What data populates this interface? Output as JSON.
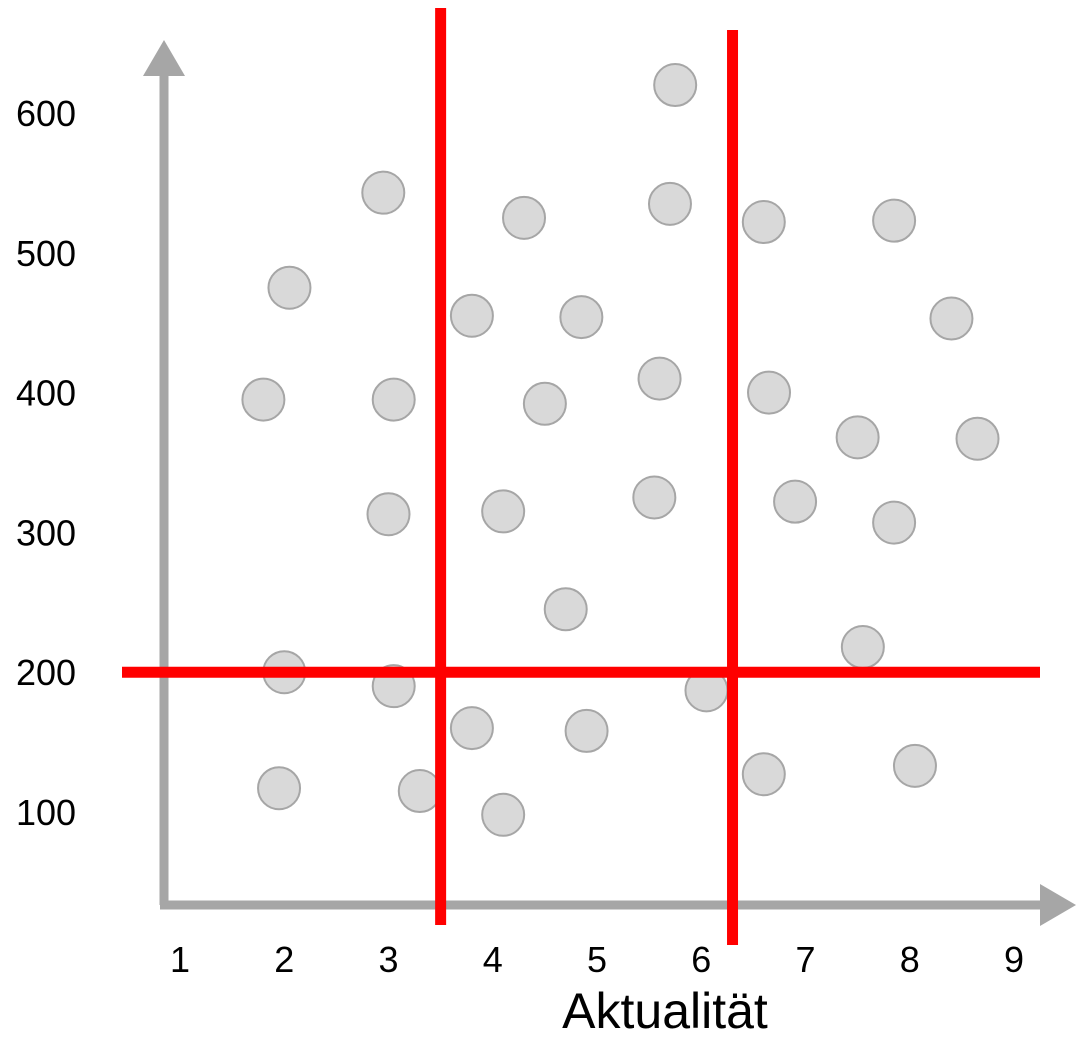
{
  "chart_data": {
    "type": "scatter",
    "title": "",
    "xlabel": "Aktualität",
    "ylabel": "",
    "xlim": [
      0.9,
      9.6
    ],
    "ylim": [
      50,
      680
    ],
    "x_ticks": [
      "1",
      "2",
      "3",
      "4",
      "5",
      "6",
      "7",
      "8",
      "9"
    ],
    "y_ticks": [
      "100",
      "200",
      "300",
      "400",
      "500",
      "600"
    ],
    "grid": false,
    "legend": "none",
    "points": [
      {
        "x": 1.8,
        "y": 395
      },
      {
        "x": 2.05,
        "y": 475
      },
      {
        "x": 2.0,
        "y": 200
      },
      {
        "x": 1.95,
        "y": 117
      },
      {
        "x": 2.95,
        "y": 543
      },
      {
        "x": 3.05,
        "y": 395
      },
      {
        "x": 3.0,
        "y": 313
      },
      {
        "x": 3.05,
        "y": 190
      },
      {
        "x": 3.3,
        "y": 115
      },
      {
        "x": 3.8,
        "y": 455
      },
      {
        "x": 3.8,
        "y": 160
      },
      {
        "x": 4.1,
        "y": 315
      },
      {
        "x": 4.3,
        "y": 525
      },
      {
        "x": 4.1,
        "y": 98
      },
      {
        "x": 4.5,
        "y": 392
      },
      {
        "x": 4.7,
        "y": 245
      },
      {
        "x": 4.85,
        "y": 454
      },
      {
        "x": 4.9,
        "y": 158
      },
      {
        "x": 5.55,
        "y": 325
      },
      {
        "x": 5.6,
        "y": 410
      },
      {
        "x": 5.7,
        "y": 535
      },
      {
        "x": 5.75,
        "y": 620
      },
      {
        "x": 6.05,
        "y": 187
      },
      {
        "x": 6.6,
        "y": 522
      },
      {
        "x": 6.65,
        "y": 400
      },
      {
        "x": 6.6,
        "y": 127
      },
      {
        "x": 6.9,
        "y": 322
      },
      {
        "x": 7.5,
        "y": 368
      },
      {
        "x": 7.55,
        "y": 218
      },
      {
        "x": 7.85,
        "y": 307
      },
      {
        "x": 7.85,
        "y": 523
      },
      {
        "x": 8.05,
        "y": 133
      },
      {
        "x": 8.4,
        "y": 453
      },
      {
        "x": 8.65,
        "y": 367
      }
    ],
    "reference_lines": [
      {
        "orientation": "horizontal",
        "y": 200
      },
      {
        "orientation": "vertical",
        "x": 3.5
      },
      {
        "orientation": "vertical",
        "x": 6.3
      }
    ],
    "colors": {
      "axis": "#a6a6a6",
      "point_fill": "#d9d9d9",
      "point_stroke": "#a6a6a6",
      "reference_line": "#ff0000"
    }
  }
}
